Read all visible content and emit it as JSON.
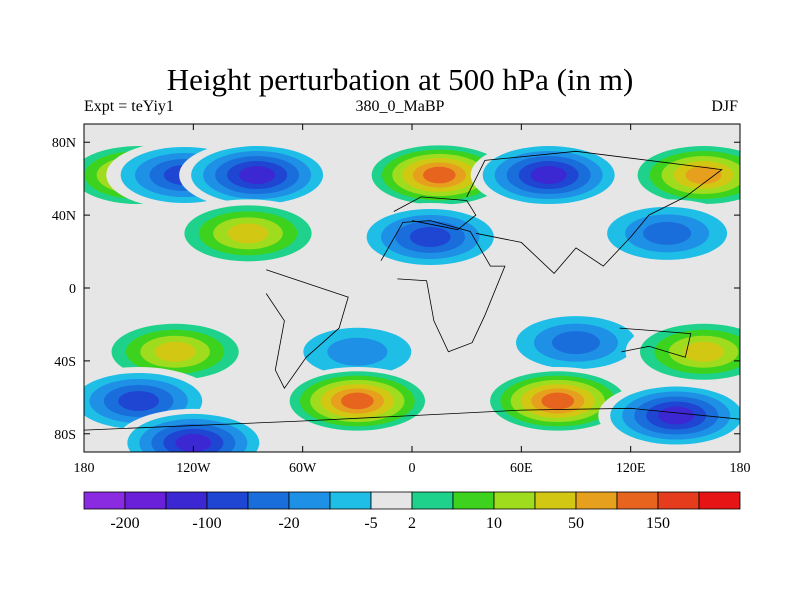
{
  "chart_data": {
    "type": "heatmap",
    "title": "Height perturbation at 500 hPa (in m)",
    "subtitle_left": "Expt = teYiy1",
    "subtitle_center": "380_0_MaBP",
    "subtitle_right": "DJF",
    "xlim": [
      -180,
      180
    ],
    "ylim": [
      -90,
      90
    ],
    "x_ticks": [
      {
        "value": -180,
        "label": "180"
      },
      {
        "value": -120,
        "label": "120W"
      },
      {
        "value": -60,
        "label": "60W"
      },
      {
        "value": 0,
        "label": "0"
      },
      {
        "value": 60,
        "label": "60E"
      },
      {
        "value": 120,
        "label": "120E"
      },
      {
        "value": 180,
        "label": "180"
      }
    ],
    "y_ticks": [
      {
        "value": 80,
        "label": "80N"
      },
      {
        "value": 40,
        "label": "40N"
      },
      {
        "value": 0,
        "label": "0"
      },
      {
        "value": -40,
        "label": "40S"
      },
      {
        "value": -80,
        "label": "80S"
      }
    ],
    "colorbar": {
      "colors": [
        "#8a2be2",
        "#6a1fd8",
        "#3c28d2",
        "#1e46d2",
        "#1a6edc",
        "#1e90e6",
        "#1ebee6",
        "#e6e6e6",
        "#1ed28c",
        "#3cd21e",
        "#a0dc1e",
        "#d2c814",
        "#e6a01e",
        "#e6641e",
        "#e63c1e",
        "#e61414"
      ],
      "labels": [
        {
          "after_index": 0,
          "text": "-200"
        },
        {
          "after_index": 2,
          "text": "-100"
        },
        {
          "after_index": 4,
          "text": "-20"
        },
        {
          "after_index": 6,
          "text": "-5"
        },
        {
          "after_index": 7,
          "text": "2"
        },
        {
          "after_index": 9,
          "text": "10"
        },
        {
          "after_index": 11,
          "text": "50"
        },
        {
          "after_index": 13,
          "text": "150"
        }
      ]
    },
    "features": [
      {
        "label": "positive anomaly center",
        "lon": -150,
        "lat": 62,
        "level": 12
      },
      {
        "label": "negative anomaly center",
        "lon": -125,
        "lat": 62,
        "level": 3
      },
      {
        "label": "negative anomaly center",
        "lon": -85,
        "lat": 62,
        "level": 2
      },
      {
        "label": "positive anomaly center",
        "lon": 15,
        "lat": 62,
        "level": 13
      },
      {
        "label": "negative anomaly center",
        "lon": 75,
        "lat": 62,
        "level": 2
      },
      {
        "label": "positive anomaly center",
        "lon": 160,
        "lat": 62,
        "level": 12
      },
      {
        "label": "positive anomaly center",
        "lon": -90,
        "lat": 30,
        "level": 11
      },
      {
        "label": "negative anomaly center",
        "lon": 10,
        "lat": 28,
        "level": 3
      },
      {
        "label": "negative anomaly center",
        "lon": 140,
        "lat": 30,
        "level": 4
      },
      {
        "label": "positive anomaly center",
        "lon": -130,
        "lat": -35,
        "level": 11
      },
      {
        "label": "negative anomaly center",
        "lon": -30,
        "lat": -35,
        "level": 5
      },
      {
        "label": "negative anomaly center",
        "lon": 90,
        "lat": -30,
        "level": 4
      },
      {
        "label": "positive anomaly center",
        "lon": 160,
        "lat": -35,
        "level": 11
      },
      {
        "label": "positive anomaly center",
        "lon": -30,
        "lat": -62,
        "level": 13
      },
      {
        "label": "positive anomaly center",
        "lon": 80,
        "lat": -62,
        "level": 13
      },
      {
        "label": "negative anomaly center",
        "lon": -150,
        "lat": -62,
        "level": 3
      },
      {
        "label": "negative anomaly center",
        "lon": 145,
        "lat": -70,
        "level": 2
      },
      {
        "label": "negative anomaly center",
        "lon": -120,
        "lat": -85,
        "level": 2
      }
    ]
  }
}
